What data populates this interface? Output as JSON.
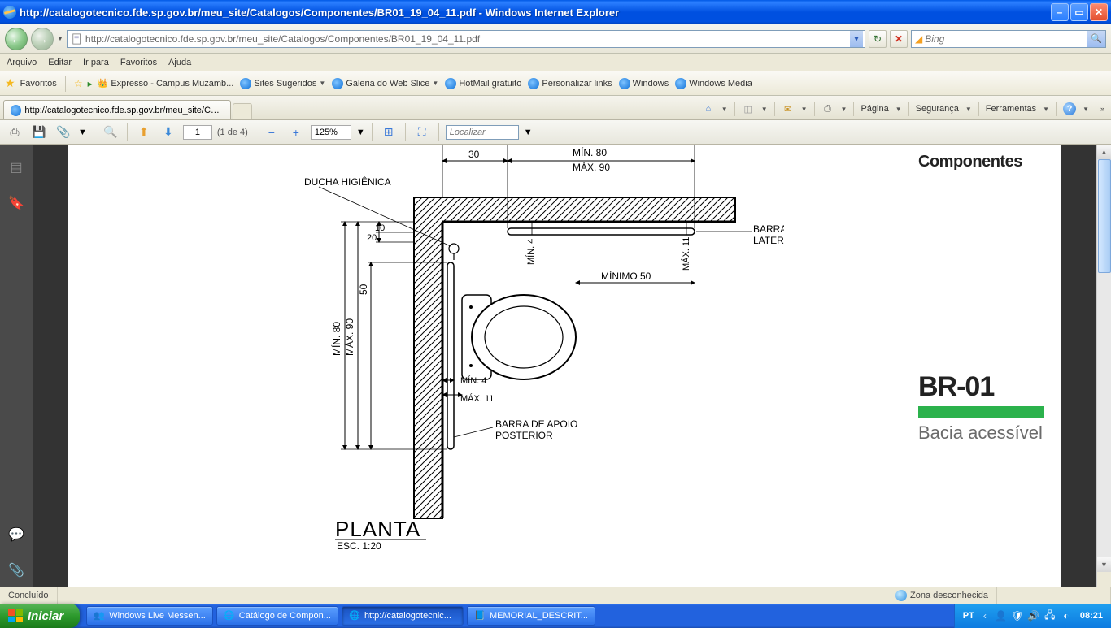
{
  "window": {
    "title": "http://catalogotecnico.fde.sp.gov.br/meu_site/Catalogos/Componentes/BR01_19_04_11.pdf - Windows Internet Explorer",
    "url": "http://catalogotecnico.fde.sp.gov.br/meu_site/Catalogos/Componentes/BR01_19_04_11.pdf"
  },
  "search": {
    "placeholder": "Bing"
  },
  "menu": {
    "arquivo": "Arquivo",
    "editar": "Editar",
    "irpara": "Ir para",
    "favoritos": "Favoritos",
    "ajuda": "Ajuda"
  },
  "favbar": {
    "label": "Favoritos",
    "links": [
      {
        "label": "Expresso - Campus Muzamb...",
        "icon": "crown"
      },
      {
        "label": "Sites Sugeridos",
        "dd": true,
        "icon": "ie"
      },
      {
        "label": "Galeria do Web Slice",
        "dd": true,
        "icon": "ie"
      },
      {
        "label": "HotMail gratuito",
        "icon": "ie"
      },
      {
        "label": "Personalizar links",
        "icon": "ie"
      },
      {
        "label": "Windows",
        "icon": "ie"
      },
      {
        "label": "Windows Media",
        "icon": "ie"
      }
    ]
  },
  "tab": {
    "title": "http://catalogotecnico.fde.sp.gov.br/meu_site/Catal..."
  },
  "cmdbar": {
    "pagina": "Página",
    "seguranca": "Segurança",
    "ferramentas": "Ferramentas"
  },
  "pdf": {
    "page_current": "1",
    "page_total": "(1 de 4)",
    "zoom": "125%",
    "find_placeholder": "Localizar"
  },
  "sheet": {
    "section": "Componentes",
    "code": "BR-01",
    "desc": "Bacia acessível",
    "view_title": "PLANTA",
    "view_scale": "ESC. 1:20",
    "labels": {
      "ducha": "DUCHA HIGIÊNICA",
      "barra_lateral_1": "BARRA DE APOIO",
      "barra_lateral_2": "LATERAL",
      "barra_post_1": "BARRA DE APOIO",
      "barra_post_2": "POSTERIOR",
      "d30": "30",
      "min80": "MÍN. 80",
      "max90": "MÁX. 90",
      "min4_h": "MÍN. 4",
      "max11_h": "MÁX. 11",
      "min50": "MÍNIMO 50",
      "d10": "10",
      "d20": "20",
      "d50": "50",
      "min80_v": "MÍN. 80",
      "max90_v": "MÁX. 90",
      "min4_v": "MÍN. 4",
      "max11_v": "MÁX. 11"
    },
    "accent_color": "#2bb24c"
  },
  "status": {
    "done": "Concluído",
    "zone": "Zona desconhecida"
  },
  "taskbar": {
    "start": "Iniciar",
    "items": [
      {
        "label": "Windows Live Messen..."
      },
      {
        "label": "Catálogo de Compon..."
      },
      {
        "label": "http://catalogotecnic..."
      },
      {
        "label": "MEMORIAL_DESCRIT..."
      }
    ],
    "lang": "PT",
    "clock": "08:21"
  }
}
